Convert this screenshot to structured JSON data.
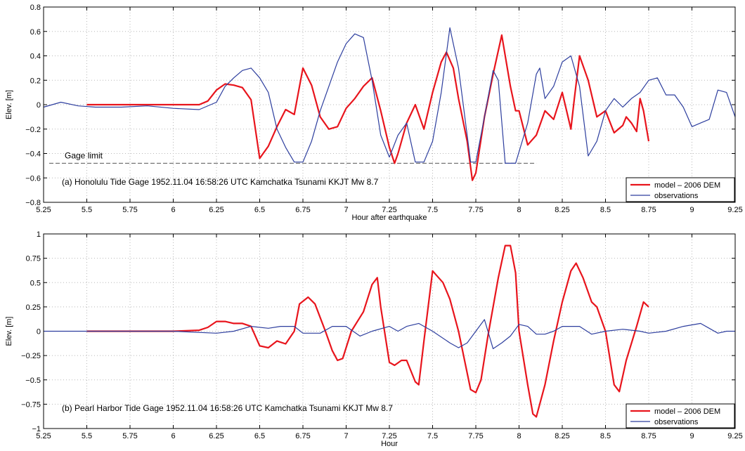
{
  "colors": {
    "model": "#e8141c",
    "observations": "#2d3e9e",
    "grid": "#b8b8b8",
    "gage_limit": "#555555"
  },
  "chart_data": [
    {
      "type": "line",
      "panel": "a",
      "xlabel": "Hour after earthquake",
      "ylabel": "Elev. [m]",
      "xlim": [
        5.25,
        9.25
      ],
      "ylim": [
        -0.8,
        0.8
      ],
      "grid": true,
      "legend_position": "bottom-right",
      "xticks": [
        "5.25",
        "5.5",
        "5.75",
        "6",
        "6.25",
        "6.5",
        "6.75",
        "7",
        "7.25",
        "7.5",
        "7.75",
        "8",
        "8.25",
        "8.5",
        "8.75",
        "9",
        "9.25"
      ],
      "yticks": [
        "−0.8",
        "−0.6",
        "−0.4",
        "−0.2",
        "0",
        "0.2",
        "0.4",
        "0.6",
        "0.8"
      ],
      "annotation": "(a)    Honolulu Tide Gage  1952.11.04 16:58:26 UTC Kamchatka Tsunami  KKJT  Mw 8.7",
      "reference_line": {
        "label": "Gage limit",
        "y": -0.48
      },
      "series": [
        {
          "name": "model – 2006 DEM",
          "color": "#e8141c",
          "points": [
            [
              5.5,
              0
            ],
            [
              6.0,
              0
            ],
            [
              6.15,
              0
            ],
            [
              6.2,
              0.03
            ],
            [
              6.25,
              0.12
            ],
            [
              6.3,
              0.17
            ],
            [
              6.35,
              0.16
            ],
            [
              6.4,
              0.14
            ],
            [
              6.45,
              0.04
            ],
            [
              6.5,
              -0.44
            ],
            [
              6.55,
              -0.34
            ],
            [
              6.6,
              -0.18
            ],
            [
              6.65,
              -0.04
            ],
            [
              6.7,
              -0.08
            ],
            [
              6.75,
              0.3
            ],
            [
              6.8,
              0.16
            ],
            [
              6.85,
              -0.1
            ],
            [
              6.9,
              -0.2
            ],
            [
              6.95,
              -0.18
            ],
            [
              7.0,
              -0.03
            ],
            [
              7.05,
              0.05
            ],
            [
              7.1,
              0.15
            ],
            [
              7.15,
              0.22
            ],
            [
              7.2,
              -0.05
            ],
            [
              7.25,
              -0.35
            ],
            [
              7.28,
              -0.48
            ],
            [
              7.3,
              -0.4
            ],
            [
              7.35,
              -0.15
            ],
            [
              7.4,
              0.0
            ],
            [
              7.45,
              -0.2
            ],
            [
              7.5,
              0.1
            ],
            [
              7.55,
              0.35
            ],
            [
              7.58,
              0.43
            ],
            [
              7.62,
              0.3
            ],
            [
              7.65,
              0.05
            ],
            [
              7.7,
              -0.3
            ],
            [
              7.73,
              -0.62
            ],
            [
              7.75,
              -0.56
            ],
            [
              7.8,
              -0.1
            ],
            [
              7.85,
              0.25
            ],
            [
              7.9,
              0.57
            ],
            [
              7.95,
              0.15
            ],
            [
              7.98,
              -0.05
            ],
            [
              8.0,
              -0.05
            ],
            [
              8.05,
              -0.33
            ],
            [
              8.1,
              -0.25
            ],
            [
              8.15,
              -0.05
            ],
            [
              8.2,
              -0.12
            ],
            [
              8.25,
              0.1
            ],
            [
              8.3,
              -0.2
            ],
            [
              8.32,
              0.05
            ],
            [
              8.35,
              0.4
            ],
            [
              8.4,
              0.2
            ],
            [
              8.45,
              -0.1
            ],
            [
              8.5,
              -0.05
            ],
            [
              8.55,
              -0.23
            ],
            [
              8.6,
              -0.17
            ],
            [
              8.62,
              -0.1
            ],
            [
              8.65,
              -0.15
            ],
            [
              8.68,
              -0.22
            ],
            [
              8.7,
              0.05
            ],
            [
              8.72,
              -0.05
            ],
            [
              8.75,
              -0.3
            ]
          ]
        },
        {
          "name": "observations",
          "color": "#2d3e9e",
          "points": [
            [
              5.25,
              -0.02
            ],
            [
              5.35,
              0.02
            ],
            [
              5.45,
              -0.01
            ],
            [
              5.55,
              -0.02
            ],
            [
              5.7,
              -0.02
            ],
            [
              5.85,
              -0.01
            ],
            [
              6.0,
              -0.03
            ],
            [
              6.15,
              -0.04
            ],
            [
              6.25,
              0.02
            ],
            [
              6.3,
              0.15
            ],
            [
              6.35,
              0.22
            ],
            [
              6.4,
              0.28
            ],
            [
              6.45,
              0.3
            ],
            [
              6.5,
              0.22
            ],
            [
              6.55,
              0.1
            ],
            [
              6.6,
              -0.2
            ],
            [
              6.65,
              -0.35
            ],
            [
              6.7,
              -0.47
            ],
            [
              6.75,
              -0.47
            ],
            [
              6.8,
              -0.3
            ],
            [
              6.85,
              -0.05
            ],
            [
              6.9,
              0.15
            ],
            [
              6.95,
              0.35
            ],
            [
              7.0,
              0.5
            ],
            [
              7.05,
              0.58
            ],
            [
              7.1,
              0.55
            ],
            [
              7.15,
              0.2
            ],
            [
              7.2,
              -0.25
            ],
            [
              7.25,
              -0.43
            ],
            [
              7.3,
              -0.25
            ],
            [
              7.35,
              -0.15
            ],
            [
              7.4,
              -0.47
            ],
            [
              7.45,
              -0.47
            ],
            [
              7.5,
              -0.3
            ],
            [
              7.55,
              0.1
            ],
            [
              7.6,
              0.63
            ],
            [
              7.65,
              0.3
            ],
            [
              7.7,
              -0.25
            ],
            [
              7.72,
              -0.47
            ],
            [
              7.75,
              -0.47
            ],
            [
              7.8,
              -0.1
            ],
            [
              7.85,
              0.28
            ],
            [
              7.88,
              0.2
            ],
            [
              7.92,
              -0.48
            ],
            [
              7.98,
              -0.48
            ],
            [
              8.05,
              -0.15
            ],
            [
              8.1,
              0.25
            ],
            [
              8.12,
              0.3
            ],
            [
              8.15,
              0.05
            ],
            [
              8.2,
              0.15
            ],
            [
              8.25,
              0.35
            ],
            [
              8.3,
              0.4
            ],
            [
              8.35,
              0.15
            ],
            [
              8.4,
              -0.42
            ],
            [
              8.45,
              -0.3
            ],
            [
              8.5,
              -0.05
            ],
            [
              8.55,
              0.05
            ],
            [
              8.6,
              -0.02
            ],
            [
              8.65,
              0.05
            ],
            [
              8.7,
              0.1
            ],
            [
              8.75,
              0.2
            ],
            [
              8.8,
              0.22
            ],
            [
              8.85,
              0.08
            ],
            [
              8.9,
              0.08
            ],
            [
              8.95,
              -0.02
            ],
            [
              9.0,
              -0.18
            ],
            [
              9.05,
              -0.15
            ],
            [
              9.1,
              -0.12
            ],
            [
              9.15,
              0.12
            ],
            [
              9.2,
              0.1
            ],
            [
              9.25,
              -0.1
            ]
          ]
        }
      ]
    },
    {
      "type": "line",
      "panel": "b",
      "xlabel": "Hour",
      "ylabel": "Elev. [m]",
      "xlim": [
        5.25,
        9.25
      ],
      "ylim": [
        -1,
        1
      ],
      "grid": true,
      "legend_position": "bottom-right",
      "xticks": [
        "5.25",
        "5.5",
        "5.75",
        "6",
        "6.25",
        "6.5",
        "6.75",
        "7",
        "7.25",
        "7.5",
        "7.75",
        "8",
        "8.25",
        "8.5",
        "8.75",
        "9",
        "9.25"
      ],
      "yticks": [
        "−1",
        "−0.75",
        "−0.5",
        "−0.25",
        "0",
        "0.25",
        "0.5",
        "0.75",
        "1"
      ],
      "annotation": "(b)    Pearl Harbor  Tide Gage  1952.11.04 16:58:26 UTC Kamchatka Tsunami  KKJT  Mw 8.7",
      "series": [
        {
          "name": "model – 2006 DEM",
          "color": "#e8141c",
          "points": [
            [
              5.5,
              0
            ],
            [
              6.0,
              0
            ],
            [
              6.15,
              0.01
            ],
            [
              6.2,
              0.04
            ],
            [
              6.25,
              0.1
            ],
            [
              6.3,
              0.1
            ],
            [
              6.35,
              0.08
            ],
            [
              6.4,
              0.08
            ],
            [
              6.45,
              0.05
            ],
            [
              6.5,
              -0.15
            ],
            [
              6.55,
              -0.17
            ],
            [
              6.6,
              -0.1
            ],
            [
              6.65,
              -0.13
            ],
            [
              6.7,
              0.0
            ],
            [
              6.73,
              0.28
            ],
            [
              6.78,
              0.35
            ],
            [
              6.82,
              0.28
            ],
            [
              6.88,
              0.0
            ],
            [
              6.92,
              -0.2
            ],
            [
              6.95,
              -0.3
            ],
            [
              6.98,
              -0.28
            ],
            [
              7.03,
              0.0
            ],
            [
              7.1,
              0.2
            ],
            [
              7.15,
              0.48
            ],
            [
              7.18,
              0.55
            ],
            [
              7.2,
              0.25
            ],
            [
              7.25,
              -0.32
            ],
            [
              7.28,
              -0.35
            ],
            [
              7.32,
              -0.3
            ],
            [
              7.35,
              -0.3
            ],
            [
              7.4,
              -0.52
            ],
            [
              7.42,
              -0.55
            ],
            [
              7.45,
              -0.1
            ],
            [
              7.5,
              0.62
            ],
            [
              7.52,
              0.58
            ],
            [
              7.56,
              0.5
            ],
            [
              7.6,
              0.33
            ],
            [
              7.65,
              0.0
            ],
            [
              7.72,
              -0.6
            ],
            [
              7.75,
              -0.63
            ],
            [
              7.78,
              -0.5
            ],
            [
              7.82,
              -0.05
            ],
            [
              7.88,
              0.55
            ],
            [
              7.92,
              0.88
            ],
            [
              7.95,
              0.88
            ],
            [
              7.98,
              0.6
            ],
            [
              8.0,
              0.0
            ],
            [
              8.05,
              -0.55
            ],
            [
              8.08,
              -0.85
            ],
            [
              8.1,
              -0.88
            ],
            [
              8.15,
              -0.55
            ],
            [
              8.2,
              -0.1
            ],
            [
              8.25,
              0.3
            ],
            [
              8.3,
              0.62
            ],
            [
              8.33,
              0.7
            ],
            [
              8.37,
              0.55
            ],
            [
              8.42,
              0.3
            ],
            [
              8.45,
              0.25
            ],
            [
              8.5,
              0.0
            ],
            [
              8.55,
              -0.55
            ],
            [
              8.58,
              -0.62
            ],
            [
              8.62,
              -0.3
            ],
            [
              8.68,
              0.05
            ],
            [
              8.72,
              0.3
            ],
            [
              8.75,
              0.25
            ]
          ]
        },
        {
          "name": "observations",
          "color": "#2d3e9e",
          "points": [
            [
              5.25,
              0
            ],
            [
              5.5,
              0
            ],
            [
              5.75,
              0
            ],
            [
              6.0,
              0
            ],
            [
              6.25,
              -0.02
            ],
            [
              6.35,
              0.0
            ],
            [
              6.45,
              0.05
            ],
            [
              6.55,
              0.03
            ],
            [
              6.62,
              0.05
            ],
            [
              6.7,
              0.05
            ],
            [
              6.75,
              -0.02
            ],
            [
              6.85,
              -0.02
            ],
            [
              6.92,
              0.05
            ],
            [
              7.0,
              0.05
            ],
            [
              7.08,
              -0.05
            ],
            [
              7.15,
              0.0
            ],
            [
              7.25,
              0.05
            ],
            [
              7.3,
              0.0
            ],
            [
              7.35,
              0.05
            ],
            [
              7.42,
              0.08
            ],
            [
              7.5,
              0.0
            ],
            [
              7.6,
              -0.12
            ],
            [
              7.65,
              -0.17
            ],
            [
              7.7,
              -0.12
            ],
            [
              7.75,
              0.0
            ],
            [
              7.8,
              0.12
            ],
            [
              7.85,
              -0.18
            ],
            [
              7.9,
              -0.12
            ],
            [
              7.95,
              -0.05
            ],
            [
              8.0,
              0.07
            ],
            [
              8.05,
              0.05
            ],
            [
              8.1,
              -0.03
            ],
            [
              8.15,
              -0.03
            ],
            [
              8.2,
              0.0
            ],
            [
              8.25,
              0.05
            ],
            [
              8.35,
              0.05
            ],
            [
              8.42,
              -0.03
            ],
            [
              8.5,
              0.0
            ],
            [
              8.6,
              0.02
            ],
            [
              8.7,
              0.0
            ],
            [
              8.75,
              -0.02
            ],
            [
              8.85,
              0.0
            ],
            [
              8.95,
              0.05
            ],
            [
              9.05,
              0.08
            ],
            [
              9.1,
              0.03
            ],
            [
              9.15,
              -0.02
            ],
            [
              9.2,
              0.0
            ],
            [
              9.25,
              0.0
            ]
          ]
        }
      ]
    }
  ]
}
